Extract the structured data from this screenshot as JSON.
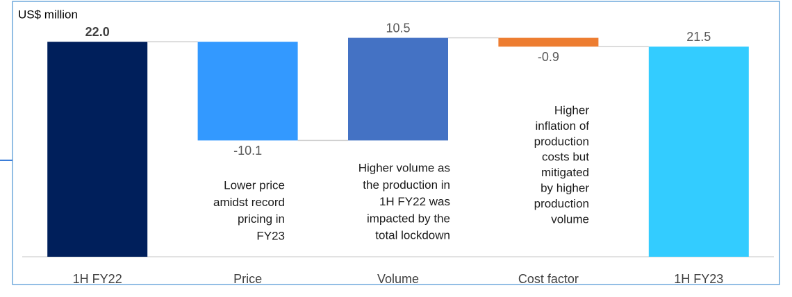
{
  "chart_data": {
    "type": "waterfall",
    "axis_label": "US$ million",
    "categories": [
      "1H FY22",
      "Price",
      "Volume",
      "Cost factor",
      "1H FY23"
    ],
    "values": [
      22.0,
      -10.1,
      10.5,
      -0.9,
      21.5
    ],
    "value_labels": [
      "22.0",
      "-10.1",
      "10.5",
      "-0.9",
      "21.5"
    ],
    "totals": [
      true,
      false,
      false,
      false,
      true
    ],
    "colors": [
      "#001f5b",
      "#3399ff",
      "#4472c4",
      "#ed7d31",
      "#33ccff"
    ],
    "ylim": [
      0,
      24
    ],
    "annotations": [
      [
        "Lower price",
        "amidst record",
        "pricing in",
        "FY23"
      ],
      [
        "Higher volume as",
        "the production in",
        "1H FY22 was",
        "impacted by the",
        "total lockdown"
      ],
      [
        "Higher",
        "inflation of",
        "production",
        "costs but",
        "mitigated",
        "by higher",
        "production",
        "volume"
      ]
    ]
  }
}
